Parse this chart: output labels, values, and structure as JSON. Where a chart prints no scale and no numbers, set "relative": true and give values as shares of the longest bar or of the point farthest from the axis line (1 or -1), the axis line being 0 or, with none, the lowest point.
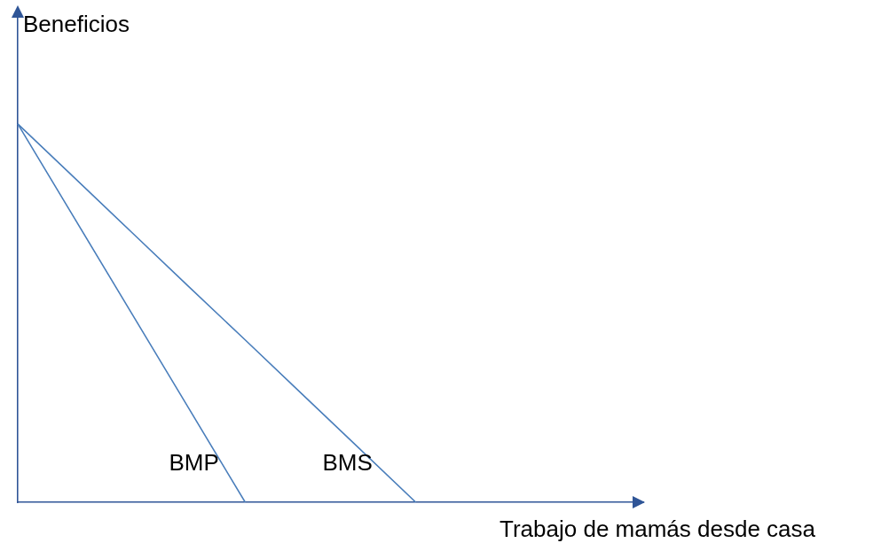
{
  "chart_data": {
    "type": "line",
    "relative": true,
    "xlabel": "Trabajo de mamás desde casa",
    "ylabel": "Beneficios",
    "categories": [
      null,
      null,
      null,
      null,
      null,
      null,
      null,
      null,
      null,
      null,
      null,
      null
    ],
    "series": [
      {
        "name": "BMP",
        "color": "#4a7ebb",
        "values": [
          1,
          0.75,
          0.5,
          0.25,
          0,
          null,
          null,
          null,
          null,
          null,
          null,
          null
        ]
      },
      {
        "name": "BMS",
        "color": "#4a7ebb",
        "values": [
          1,
          0.857,
          0.714,
          0.571,
          0.429,
          0.286,
          0.143,
          0,
          null,
          null,
          null,
          null
        ]
      }
    ],
    "legend": false,
    "grid": false,
    "marker": "none",
    "line_style": "solid"
  }
}
